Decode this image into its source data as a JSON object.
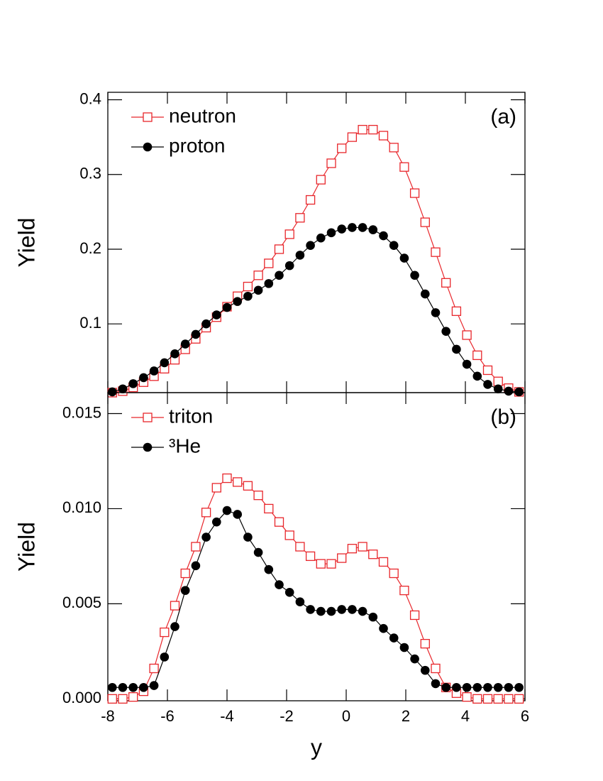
{
  "chart_data": [
    {
      "type": "line",
      "annotation": "(a)",
      "ylabel": "Yield",
      "x": [
        -7.85,
        -7.5,
        -7.15,
        -6.8,
        -6.45,
        -6.1,
        -5.75,
        -5.4,
        -5.05,
        -4.7,
        -4.35,
        -4.0,
        -3.65,
        -3.3,
        -2.95,
        -2.6,
        -2.25,
        -1.9,
        -1.55,
        -1.2,
        -0.85,
        -0.5,
        -0.15,
        0.2,
        0.55,
        0.9,
        1.25,
        1.6,
        1.95,
        2.3,
        2.65,
        3.0,
        3.35,
        3.7,
        4.05,
        4.4,
        4.75,
        5.1,
        5.45,
        5.8
      ],
      "series": [
        {
          "name": "neutron",
          "color": "#e8262b",
          "marker": "square",
          "values": [
            0.008,
            0.01,
            0.015,
            0.022,
            0.03,
            0.04,
            0.052,
            0.066,
            0.08,
            0.095,
            0.109,
            0.123,
            0.137,
            0.15,
            0.165,
            0.181,
            0.2,
            0.22,
            0.242,
            0.266,
            0.293,
            0.315,
            0.335,
            0.35,
            0.36,
            0.36,
            0.352,
            0.336,
            0.31,
            0.275,
            0.236,
            0.196,
            0.155,
            0.117,
            0.085,
            0.058,
            0.038,
            0.023,
            0.014,
            0.009
          ]
        },
        {
          "name": "proton",
          "color": "#000000",
          "marker": "circle",
          "values": [
            0.009,
            0.013,
            0.02,
            0.028,
            0.037,
            0.048,
            0.06,
            0.073,
            0.086,
            0.1,
            0.112,
            0.122,
            0.13,
            0.137,
            0.145,
            0.154,
            0.165,
            0.178,
            0.192,
            0.205,
            0.215,
            0.222,
            0.227,
            0.229,
            0.229,
            0.226,
            0.218,
            0.205,
            0.188,
            0.165,
            0.14,
            0.115,
            0.09,
            0.066,
            0.046,
            0.03,
            0.019,
            0.013,
            0.01,
            0.009
          ]
        }
      ],
      "xlim": [
        -8,
        6
      ],
      "xticks": [
        -8,
        -6,
        -4,
        -2,
        0,
        2,
        4,
        6
      ],
      "ylim": [
        0.008,
        0.41
      ],
      "yticks": [
        0.1,
        0.2,
        0.3,
        0.4
      ]
    },
    {
      "type": "line",
      "annotation": "(b)",
      "ylabel": "Yield",
      "xlabel": "y",
      "x": [
        -7.85,
        -7.5,
        -7.15,
        -6.8,
        -6.45,
        -6.1,
        -5.75,
        -5.4,
        -5.05,
        -4.7,
        -4.35,
        -4.0,
        -3.65,
        -3.3,
        -2.95,
        -2.6,
        -2.25,
        -1.9,
        -1.55,
        -1.2,
        -0.85,
        -0.5,
        -0.15,
        0.2,
        0.55,
        0.9,
        1.25,
        1.6,
        1.95,
        2.3,
        2.65,
        3.0,
        3.35,
        3.7,
        4.05,
        4.4,
        4.75,
        5.1,
        5.45,
        5.8
      ],
      "series": [
        {
          "name": "triton",
          "color": "#e8262b",
          "marker": "square",
          "values": [
            0,
            0,
            0.0001,
            0.0004,
            0.0016,
            0.0035,
            0.0049,
            0.0066,
            0.008,
            0.0098,
            0.0111,
            0.0116,
            0.0114,
            0.0112,
            0.0107,
            0.01,
            0.0093,
            0.0086,
            0.008,
            0.0075,
            0.0071,
            0.0071,
            0.0074,
            0.0079,
            0.008,
            0.0076,
            0.0072,
            0.0066,
            0.0057,
            0.0044,
            0.0029,
            0.0016,
            0.0006,
            0.0003,
            0.0001,
            0,
            0,
            0,
            0,
            0
          ]
        },
        {
          "name": "³He",
          "color": "#000000",
          "marker": "circle",
          "values": [
            0.0006,
            0.0006,
            0.0006,
            0.0006,
            0.0007,
            0.0022,
            0.0038,
            0.0057,
            0.007,
            0.0085,
            0.0093,
            0.0099,
            0.0097,
            0.0085,
            0.0077,
            0.0068,
            0.006,
            0.0056,
            0.0051,
            0.0047,
            0.0046,
            0.0046,
            0.0047,
            0.0047,
            0.0046,
            0.0043,
            0.0037,
            0.0032,
            0.0027,
            0.0021,
            0.0015,
            0.0008,
            0.0006,
            0.0006,
            0.0006,
            0.0006,
            0.0006,
            0.0006,
            0.0006,
            0.0006
          ]
        }
      ],
      "xlim": [
        -8,
        6
      ],
      "xticks": [
        -8,
        -6,
        -4,
        -2,
        0,
        2,
        4,
        6
      ],
      "ylim": [
        -0.0001,
        0.0161
      ],
      "yticks": [
        {
          "value": 0,
          "label": "0.000"
        },
        0.005,
        {
          "value": 0.01,
          "label": "0.010"
        },
        0.015
      ]
    }
  ]
}
